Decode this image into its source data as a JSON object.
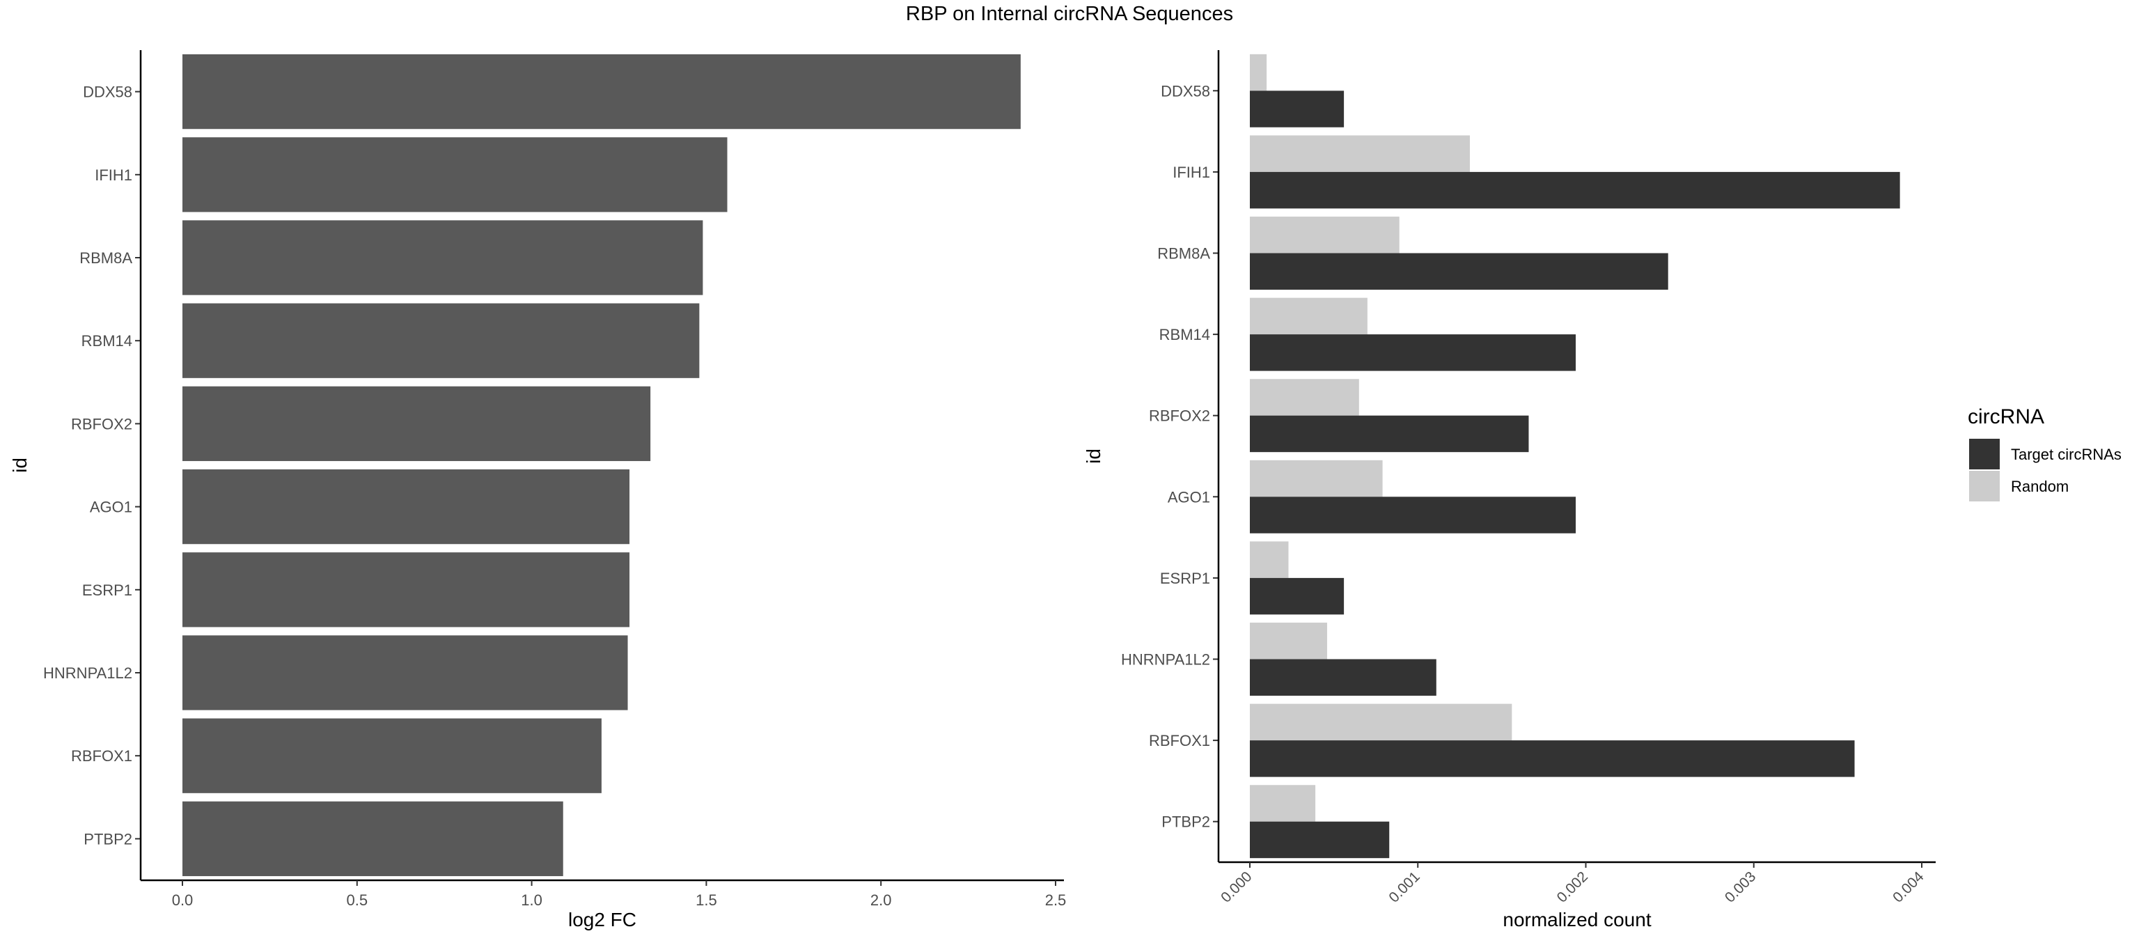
{
  "title": "RBP on Internal circRNA Sequences",
  "chart_data": [
    {
      "type": "bar",
      "orientation": "horizontal",
      "categories": [
        "DDX58",
        "IFIH1",
        "RBM8A",
        "RBM14",
        "RBFOX2",
        "AGO1",
        "ESRP1",
        "HNRNPA1L2",
        "RBFOX1",
        "PTBP2"
      ],
      "values": [
        2.4,
        1.56,
        1.49,
        1.48,
        1.34,
        1.28,
        1.28,
        1.275,
        1.2,
        1.09
      ],
      "xlabel": "log2 FC",
      "ylabel": "id",
      "xlim": [
        0,
        2.5
      ],
      "xticks": [
        "0.0",
        "0.5",
        "1.0",
        "1.5",
        "2.0",
        "2.5"
      ],
      "bar_color": "#595959",
      "grid": false
    },
    {
      "type": "bar",
      "orientation": "horizontal",
      "categories": [
        "DDX58",
        "IFIH1",
        "RBM8A",
        "RBM14",
        "RBFOX2",
        "AGO1",
        "ESRP1",
        "HNRNPA1L2",
        "RBFOX1",
        "PTBP2"
      ],
      "series": [
        {
          "name": "Target circRNAs",
          "color": "#333333",
          "values": [
            0.00056,
            0.00387,
            0.00249,
            0.00194,
            0.00166,
            0.00194,
            0.00056,
            0.00111,
            0.0036,
            0.00083
          ]
        },
        {
          "name": "Random",
          "color": "#cccccc",
          "values": [
            0.0001,
            0.00131,
            0.00089,
            0.0007,
            0.00065,
            0.00079,
            0.00023,
            0.00046,
            0.00156,
            0.00039
          ]
        }
      ],
      "xlabel": "normalized count",
      "ylabel": "id",
      "xlim": [
        0,
        0.004
      ],
      "xticks": [
        "0.000",
        "0.001",
        "0.002",
        "0.003",
        "0.004"
      ],
      "legend": {
        "title": "circRNA",
        "position": "right"
      },
      "grid": false
    }
  ]
}
